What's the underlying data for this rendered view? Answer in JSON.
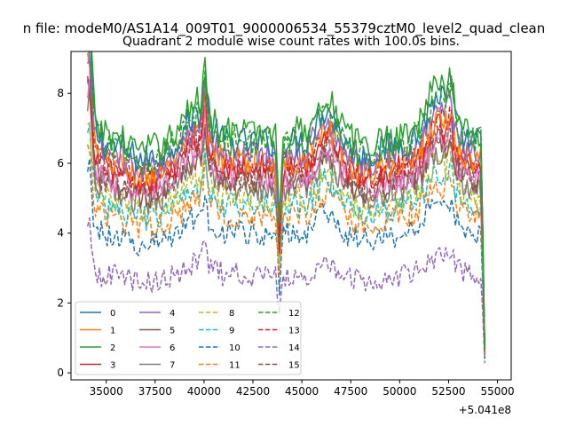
{
  "chart_data": {
    "type": "line",
    "suptitle": "n file: modeM0/AS1A14_009T01_9000006534_55379cztM0_level2_quad_clean",
    "title": "Quadrant 2 module wise count rates with 100.0s bins.",
    "xlabel": "",
    "ylabel": "",
    "x_offset_label": "+5.041e8",
    "xlim": [
      33200,
      55700
    ],
    "ylim": [
      -0.2,
      9.2
    ],
    "x_ticks": [
      35000,
      37500,
      40000,
      42500,
      45000,
      47500,
      50000,
      52500,
      55000
    ],
    "x_tick_labels": [
      "35000",
      "37500",
      "40000",
      "42500",
      "45000",
      "47500",
      "50000",
      "52500",
      "55000"
    ],
    "y_ticks": [
      0,
      2,
      4,
      6,
      8
    ],
    "y_tick_labels": [
      "0",
      "2",
      "4",
      "6",
      "8"
    ],
    "x_range": [
      34050,
      54350
    ],
    "bin_width": 100,
    "legend_position": "lower-left",
    "legend_columns": 4,
    "series": [
      {
        "name": "0",
        "base": 6.6,
        "style": "solid",
        "color": "#1f77b4"
      },
      {
        "name": "1",
        "base": 6.1,
        "style": "solid",
        "color": "#ff7f0e"
      },
      {
        "name": "2",
        "base": 6.9,
        "style": "solid",
        "color": "#2ca02c"
      },
      {
        "name": "3",
        "base": 5.9,
        "style": "solid",
        "color": "#d62728"
      },
      {
        "name": "4",
        "base": 6.3,
        "style": "solid",
        "color": "#9467bd"
      },
      {
        "name": "5",
        "base": 5.5,
        "style": "solid",
        "color": "#8c564b"
      },
      {
        "name": "6",
        "base": 5.6,
        "style": "solid",
        "color": "#e377c2"
      },
      {
        "name": "7",
        "base": 5.3,
        "style": "solid",
        "color": "#7f7f7f"
      },
      {
        "name": "8",
        "base": 5.0,
        "style": "dashed",
        "color": "#bcbd22"
      },
      {
        "name": "9",
        "base": 4.8,
        "style": "dashed",
        "color": "#17becf"
      },
      {
        "name": "10",
        "base": 4.0,
        "style": "dashed",
        "color": "#1f77b4"
      },
      {
        "name": "11",
        "base": 4.5,
        "style": "dashed",
        "color": "#ff7f0e"
      },
      {
        "name": "12",
        "base": 6.6,
        "style": "dashed",
        "color": "#2ca02c"
      },
      {
        "name": "13",
        "base": 6.0,
        "style": "dashed",
        "color": "#d62728"
      },
      {
        "name": "14",
        "base": 2.8,
        "style": "dashed",
        "color": "#9467bd"
      },
      {
        "name": "15",
        "base": 5.6,
        "style": "dashed",
        "color": "#8c564b"
      }
    ]
  }
}
